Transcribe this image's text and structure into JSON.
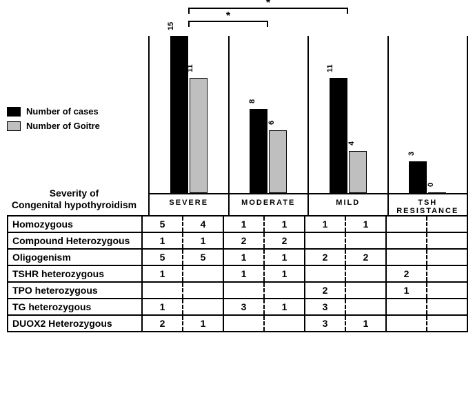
{
  "legend": {
    "items": [
      {
        "label": "Number of cases",
        "color": "#000000"
      },
      {
        "label": "Number of Goitre",
        "color": "#bfbfbf"
      }
    ]
  },
  "chart": {
    "type": "bar",
    "ymax": 15,
    "bar_border": "#000000",
    "groups": [
      {
        "label": "SEVERE",
        "cases": 15,
        "goitre": 11
      },
      {
        "label": "MODERATE",
        "cases": 8,
        "goitre": 6
      },
      {
        "label": "MILD",
        "cases": 11,
        "goitre": 4
      },
      {
        "label": "TSH RESISTANCE",
        "cases": 3,
        "goitre": 0
      }
    ],
    "significance": [
      {
        "from_group": 0,
        "to_group": 2,
        "y": 1,
        "symbol": "*"
      },
      {
        "from_group": 0,
        "to_group": 1,
        "y": 20,
        "symbol": "*"
      }
    ]
  },
  "table": {
    "title_line1": "Severity of",
    "title_line2": "Congenital hypothyroidism",
    "rows": [
      {
        "label": "Homozygous",
        "cells": [
          "5",
          "4",
          "1",
          "1",
          "1",
          "1",
          "",
          ""
        ]
      },
      {
        "label": "Compound Heterozygous",
        "cells": [
          "1",
          "1",
          "2",
          "2",
          "",
          "",
          "",
          ""
        ],
        "spacer_before": true
      },
      {
        "label": "Oligogenism",
        "cells": [
          "5",
          "5",
          "1",
          "1",
          "2",
          "2",
          "",
          ""
        ]
      },
      {
        "label": "TSHR heterozygous",
        "cells": [
          "1",
          "",
          "1",
          "1",
          "",
          "",
          "2",
          ""
        ]
      },
      {
        "label": "TPO heterozygous",
        "cells": [
          "",
          "",
          "",
          "",
          "2",
          "",
          "1",
          ""
        ]
      },
      {
        "label": "TG heterozygous",
        "cells": [
          "1",
          "",
          "3",
          "1",
          "3",
          "",
          "",
          ""
        ]
      },
      {
        "label": "DUOX2 Heterozygous",
        "cells": [
          "2",
          "1",
          "",
          "",
          "3",
          "1",
          "",
          ""
        ]
      }
    ]
  }
}
